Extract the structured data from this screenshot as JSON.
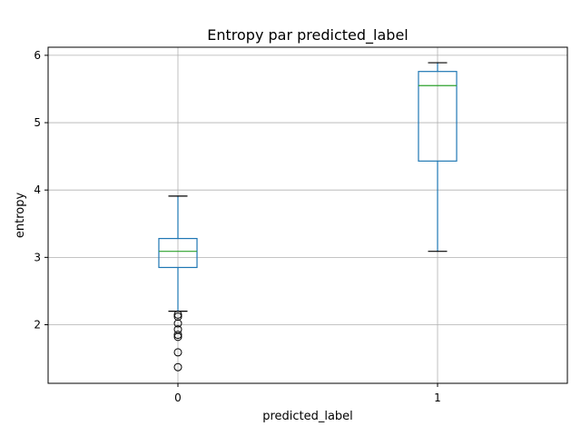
{
  "chart_data": {
    "type": "box",
    "title": "Entropy par predicted_label",
    "xlabel": "predicted_label",
    "ylabel": "entropy",
    "categories": [
      "0",
      "1"
    ],
    "ylim": [
      1.13,
      6.12
    ],
    "yticks": [
      2,
      3,
      4,
      5,
      6
    ],
    "grid": true,
    "colors": {
      "box": "#1f77b4",
      "median": "#2ca02c",
      "whisker_cap": "#000000",
      "grid": "#b0b0b0"
    },
    "boxes": [
      {
        "category": "0",
        "whisker_low": 2.2,
        "q1": 2.85,
        "median": 3.09,
        "q3": 3.28,
        "whisker_high": 3.91,
        "outliers": [
          2.15,
          2.12,
          2.02,
          1.93,
          1.85,
          1.82,
          1.59,
          1.37
        ]
      },
      {
        "category": "1",
        "whisker_low": 3.09,
        "q1": 4.43,
        "median": 5.55,
        "q3": 5.76,
        "whisker_high": 5.89,
        "outliers": []
      }
    ]
  }
}
